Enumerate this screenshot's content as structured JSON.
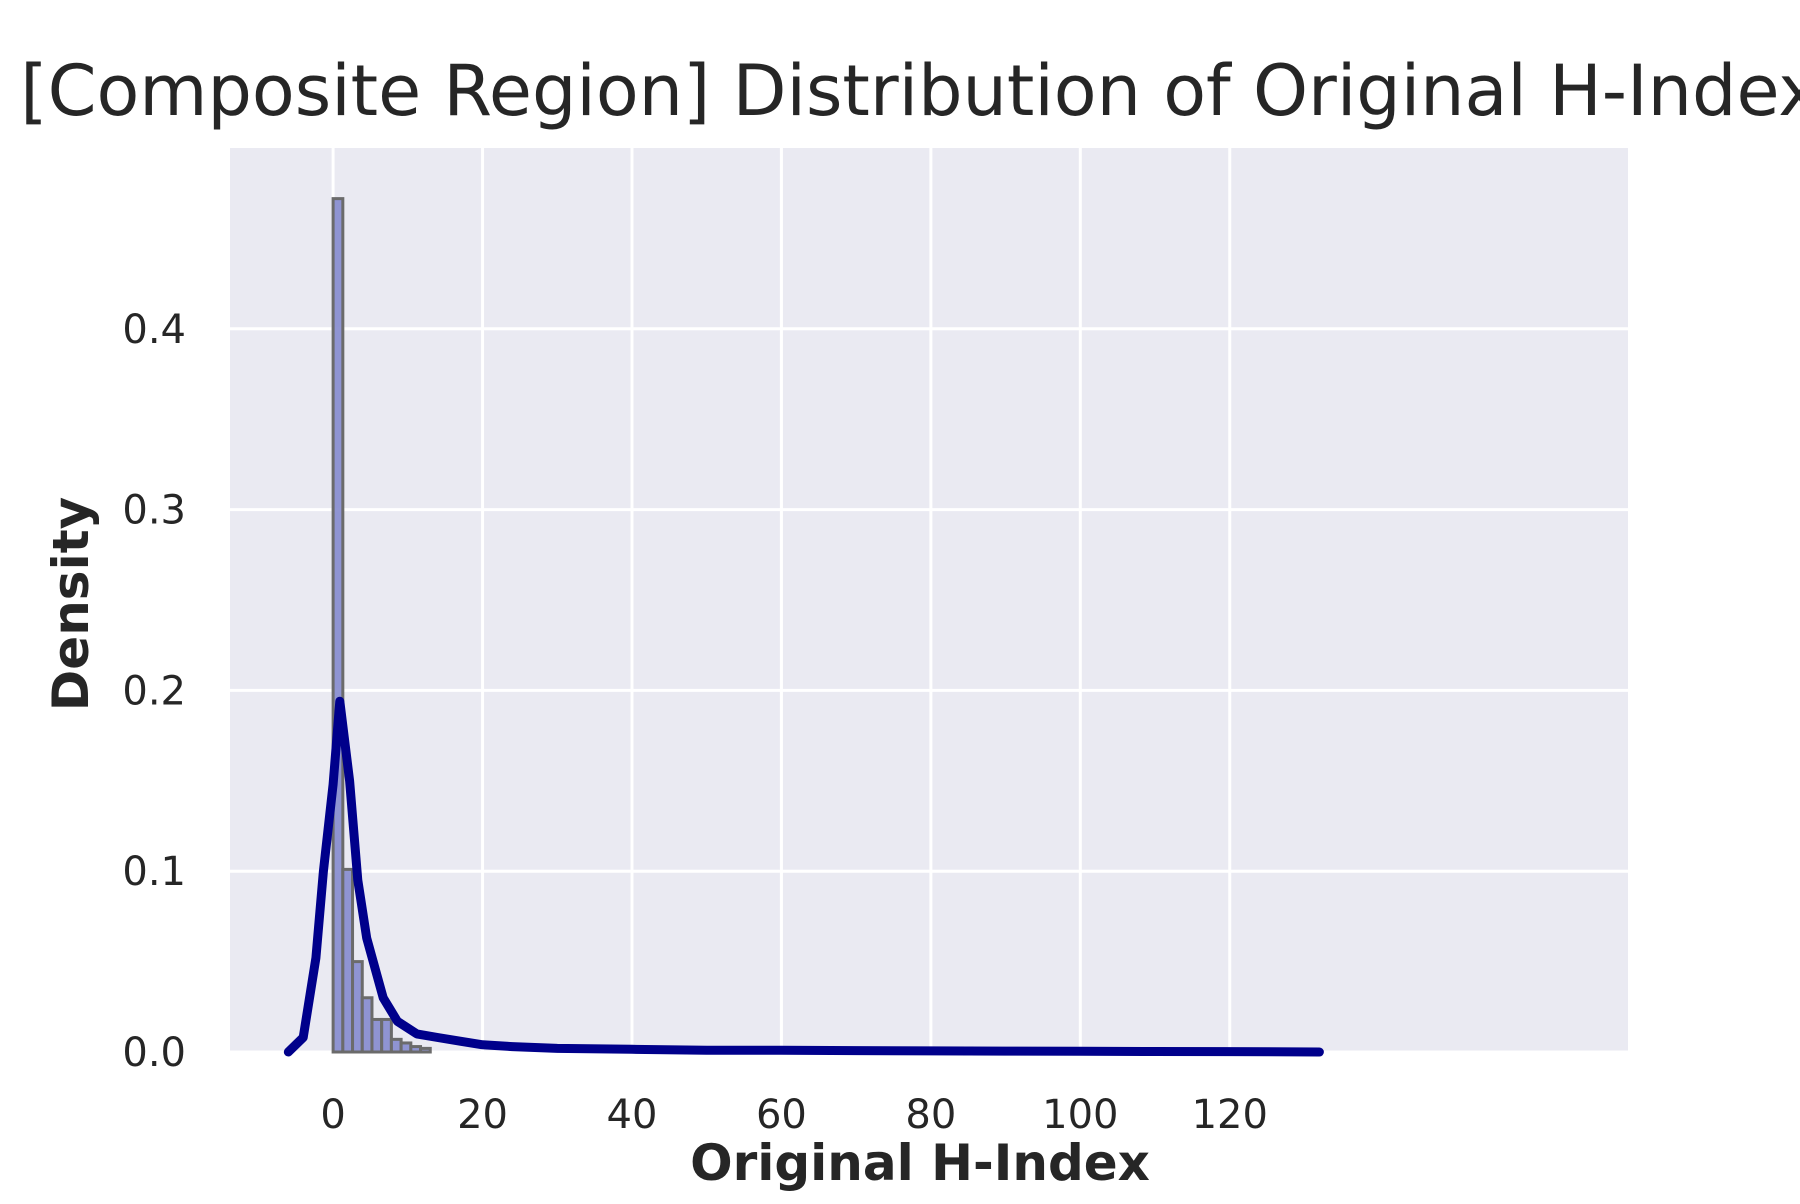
{
  "chart_data": {
    "type": "histogram",
    "title": "[Composite Region] Distribution of Original H-Index",
    "xlabel": "Original H-Index",
    "ylabel": "Density",
    "xlim": [
      -13.8,
      173.3
    ],
    "ylim": [
      0,
      0.5
    ],
    "grid": true,
    "legend": "none",
    "x_ticks": [
      0,
      20,
      40,
      60,
      80,
      100,
      120
    ],
    "x_tick_labels": [
      "0",
      "20",
      "40",
      "60",
      "80",
      "100",
      "120"
    ],
    "y_ticks": [
      0.0,
      0.1,
      0.2,
      0.3,
      0.4
    ],
    "y_tick_labels": [
      "0.0",
      "0.1",
      "0.2",
      "0.3",
      "0.4"
    ],
    "histogram": {
      "name": "",
      "bin_edges": [
        0,
        1.3,
        2.6,
        3.9,
        5.2,
        6.5,
        7.8,
        9.1,
        10.4,
        11.7,
        13.0
      ],
      "densities": [
        0.472,
        0.101,
        0.05,
        0.03,
        0.018,
        0.018,
        0.007,
        0.005,
        0.003,
        0.002
      ],
      "color": "#8a8fd0",
      "edge_color": "#6b6b6b"
    },
    "kde": {
      "name": "",
      "x": [
        -6,
        -4,
        -2.3,
        -1.3,
        0,
        0.9,
        2.2,
        3.3,
        4.5,
        6.7,
        8.6,
        11.2,
        14.0,
        17.0,
        20.0,
        24.0,
        30.0,
        40.0,
        50.0,
        60.0,
        70.0,
        80.0,
        90.0,
        100.0,
        110.0,
        120.0,
        132.0
      ],
      "y": [
        0.0,
        0.008,
        0.052,
        0.1,
        0.148,
        0.194,
        0.15,
        0.095,
        0.063,
        0.03,
        0.017,
        0.01,
        0.008,
        0.006,
        0.004,
        0.003,
        0.002,
        0.0015,
        0.001,
        0.001,
        0.0008,
        0.0006,
        0.0005,
        0.0004,
        0.0003,
        0.0002,
        0.0
      ],
      "color": "#00008b"
    },
    "colors": {
      "plot_background": "#eaeaf2",
      "grid": "#ffffff",
      "text": "#262626"
    }
  }
}
